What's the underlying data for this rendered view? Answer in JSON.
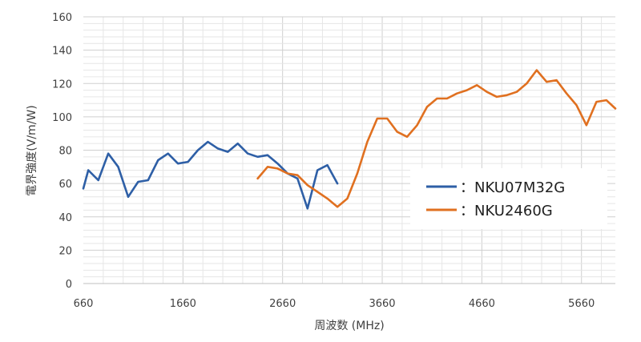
{
  "chart_data": {
    "type": "line",
    "title": "",
    "xlabel": "周波数 (MHz)",
    "ylabel": "電界強度(V/m/W)",
    "xlim": [
      660,
      6000
    ],
    "ylim": [
      0,
      160
    ],
    "x_ticks": [
      "660",
      "1660",
      "2660",
      "3660",
      "4660",
      "5660"
    ],
    "y_ticks": [
      "0",
      "20",
      "40",
      "60",
      "80",
      "100",
      "120",
      "140",
      "160"
    ],
    "grid": true,
    "legend_position": "right",
    "series": [
      {
        "name": "NKU07M32G",
        "color": "#2e5fa6",
        "legend_label": "：NKU07M32G",
        "points": [
          [
            660,
            57
          ],
          [
            710,
            68
          ],
          [
            810,
            62
          ],
          [
            910,
            78
          ],
          [
            1010,
            70
          ],
          [
            1110,
            52
          ],
          [
            1210,
            61
          ],
          [
            1310,
            62
          ],
          [
            1410,
            74
          ],
          [
            1510,
            78
          ],
          [
            1610,
            72
          ],
          [
            1710,
            73
          ],
          [
            1810,
            80
          ],
          [
            1910,
            85
          ],
          [
            2010,
            81
          ],
          [
            2110,
            79
          ],
          [
            2210,
            84
          ],
          [
            2310,
            78
          ],
          [
            2410,
            76
          ],
          [
            2510,
            77
          ],
          [
            2610,
            72
          ],
          [
            2710,
            66
          ],
          [
            2810,
            63
          ],
          [
            2910,
            45
          ],
          [
            3010,
            68
          ],
          [
            3110,
            71
          ],
          [
            3210,
            60
          ]
        ]
      },
      {
        "name": "NKU2460G",
        "color": "#e07020",
        "legend_label": "：NKU2460G",
        "points": [
          [
            2410,
            63
          ],
          [
            2510,
            70
          ],
          [
            2610,
            69
          ],
          [
            2710,
            66
          ],
          [
            2810,
            65
          ],
          [
            2910,
            59
          ],
          [
            3010,
            55
          ],
          [
            3110,
            51
          ],
          [
            3210,
            46
          ],
          [
            3310,
            51
          ],
          [
            3410,
            66
          ],
          [
            3510,
            85
          ],
          [
            3610,
            99
          ],
          [
            3710,
            99
          ],
          [
            3810,
            91
          ],
          [
            3910,
            88
          ],
          [
            4010,
            95
          ],
          [
            4110,
            106
          ],
          [
            4210,
            111
          ],
          [
            4310,
            111
          ],
          [
            4410,
            114
          ],
          [
            4510,
            116
          ],
          [
            4610,
            119
          ],
          [
            4710,
            115
          ],
          [
            4810,
            112
          ],
          [
            4910,
            113
          ],
          [
            5010,
            115
          ],
          [
            5110,
            120
          ],
          [
            5210,
            128
          ],
          [
            5310,
            121
          ],
          [
            5410,
            122
          ],
          [
            5510,
            114
          ],
          [
            5610,
            107
          ],
          [
            5710,
            95
          ],
          [
            5810,
            109
          ],
          [
            5910,
            110
          ],
          [
            6000,
            105
          ]
        ]
      }
    ]
  }
}
